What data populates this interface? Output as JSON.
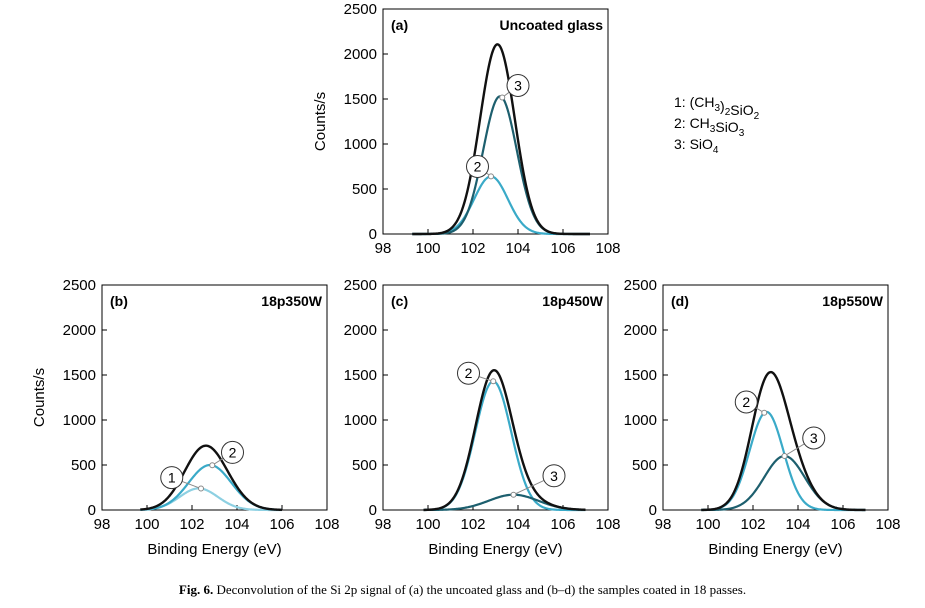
{
  "caption": {
    "label": "Fig. 6.",
    "text": " Deconvolution of the Si 2p signal of (a) the uncoated glass and (b–d) the samples coated in 18 passes."
  },
  "legend": {
    "entries": [
      {
        "num": "1",
        "formula": [
          [
            "",
            "1: (CH"
          ],
          [
            "sub",
            "3"
          ],
          [
            "",
            ")"
          ],
          [
            "sub",
            "2"
          ],
          [
            "",
            "SiO"
          ],
          [
            "sub",
            "2"
          ]
        ]
      },
      {
        "num": "2",
        "formula": [
          [
            "",
            "2: CH"
          ],
          [
            "sub",
            "3"
          ],
          [
            "",
            "SiO"
          ],
          [
            "sub",
            "3"
          ]
        ]
      },
      {
        "num": "3",
        "formula": [
          [
            "",
            "3: SiO"
          ],
          [
            "sub",
            "4"
          ]
        ]
      }
    ]
  },
  "colors": {
    "total": "#111111",
    "peak1": "#8dd0e2",
    "peak2": "#3aaac8",
    "peak3": "#1d5f6e"
  },
  "chart_data": [
    {
      "type": "line",
      "panel": "(a)",
      "title": "Uncoated glass",
      "xlabel": "",
      "ylabel": "Counts/s",
      "xlim": [
        98,
        108
      ],
      "ylim": [
        0,
        2500
      ],
      "xticks": [
        98,
        100,
        102,
        104,
        106,
        108
      ],
      "yticks": [
        0,
        500,
        1000,
        1500,
        2000,
        2500
      ],
      "x_range": [
        99.3,
        107.2
      ],
      "components": [
        {
          "num": "2",
          "color": "peak2",
          "center": 102.8,
          "height": 640,
          "sigma": 0.75,
          "marker_x": 102.8,
          "label_pos": [
            102.2,
            750
          ]
        },
        {
          "num": "3",
          "color": "peak3",
          "center": 103.2,
          "height": 1530,
          "sigma": 0.75,
          "marker_x": 103.3,
          "label_pos": [
            104.0,
            1650
          ]
        }
      ]
    },
    {
      "type": "line",
      "panel": "(b)",
      "title": "18p350W",
      "xlabel": "Binding Energy (eV)",
      "ylabel": "Counts/s",
      "xlim": [
        98,
        108
      ],
      "ylim": [
        0,
        2500
      ],
      "xticks": [
        98,
        100,
        102,
        104,
        106,
        108
      ],
      "yticks": [
        0,
        500,
        1000,
        1500,
        2000,
        2500
      ],
      "x_range": [
        99.7,
        106.0
      ],
      "components": [
        {
          "num": "1",
          "color": "peak1",
          "center": 102.3,
          "height": 240,
          "sigma": 0.85,
          "marker_x": 102.4,
          "label_pos": [
            101.1,
            360
          ]
        },
        {
          "num": "2",
          "color": "peak2",
          "center": 102.8,
          "height": 500,
          "sigma": 0.95,
          "marker_x": 102.9,
          "label_pos": [
            103.8,
            640
          ]
        }
      ]
    },
    {
      "type": "line",
      "panel": "(c)",
      "title": "18p450W",
      "xlabel": "Binding Energy (eV)",
      "ylabel": "",
      "xlim": [
        98,
        108
      ],
      "ylim": [
        0,
        2500
      ],
      "xticks": [
        98,
        100,
        102,
        104,
        106,
        108
      ],
      "yticks": [
        0,
        500,
        1000,
        1500,
        2000,
        2500
      ],
      "x_range": [
        99.8,
        107.0
      ],
      "components": [
        {
          "num": "2",
          "color": "peak2",
          "center": 102.9,
          "height": 1430,
          "sigma": 0.8,
          "marker_x": 102.9,
          "label_pos": [
            101.8,
            1520
          ]
        },
        {
          "num": "3",
          "color": "peak3",
          "center": 103.8,
          "height": 170,
          "sigma": 1.1,
          "marker_x": 103.8,
          "label_pos": [
            105.6,
            380
          ]
        }
      ]
    },
    {
      "type": "line",
      "panel": "(d)",
      "title": "18p550W",
      "xlabel": "Binding Energy (eV)",
      "ylabel": "",
      "xlim": [
        98,
        108
      ],
      "ylim": [
        0,
        2500
      ],
      "xticks": [
        98,
        100,
        102,
        104,
        106,
        108
      ],
      "yticks": [
        0,
        500,
        1000,
        1500,
        2000,
        2500
      ],
      "x_range": [
        99.7,
        107.0
      ],
      "components": [
        {
          "num": "2",
          "color": "peak2",
          "center": 102.6,
          "height": 1090,
          "sigma": 0.75,
          "marker_x": 102.5,
          "label_pos": [
            101.7,
            1200
          ]
        },
        {
          "num": "3",
          "color": "peak3",
          "center": 103.4,
          "height": 600,
          "sigma": 0.9,
          "marker_x": 103.4,
          "label_pos": [
            104.7,
            800
          ]
        }
      ]
    }
  ]
}
